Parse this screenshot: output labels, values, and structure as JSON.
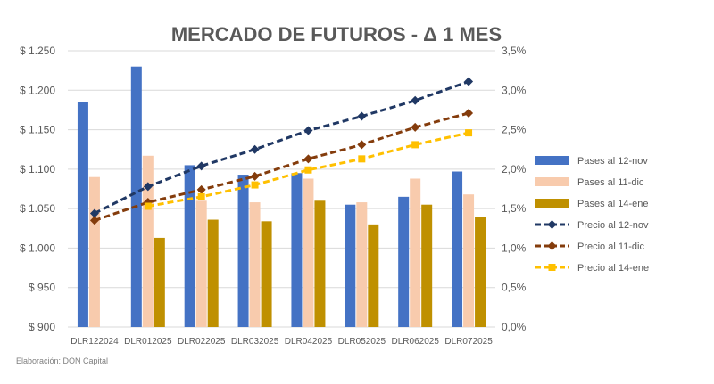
{
  "chart_data": {
    "type": "bar",
    "title": "MERCADO DE FUTUROS - Δ 1 MES",
    "categories": [
      "DLR122024",
      "DLR012025",
      "DLR022025",
      "DLR032025",
      "DLR042025",
      "DLR052025",
      "DLR062025",
      "DLR072025"
    ],
    "y_left": {
      "ticks": [
        "$ 900",
        "$ 950",
        "$ 1.000",
        "$ 1.050",
        "$ 1.100",
        "$ 1.150",
        "$ 1.200",
        "$ 1.250"
      ],
      "ylim": [
        900,
        1250
      ]
    },
    "y_right": {
      "ticks": [
        "0,0%",
        "0,5%",
        "1,0%",
        "1,5%",
        "2,0%",
        "2,5%",
        "3,0%",
        "3,5%"
      ],
      "ylim": [
        0,
        3.5
      ]
    },
    "bar_series": [
      {
        "name": "Pases al 12-nov",
        "color": "#4472c4",
        "axis": "right",
        "values": [
          2.85,
          3.3,
          2.05,
          1.93,
          1.95,
          1.55,
          1.65,
          1.97
        ]
      },
      {
        "name": "Pases al 11-dic",
        "color": "#f8cbad",
        "axis": "right",
        "values": [
          1.9,
          2.17,
          1.6,
          1.58,
          1.88,
          1.58,
          1.88,
          1.68
        ]
      },
      {
        "name": "Pases al 14-ene",
        "color": "#bf9000",
        "axis": "right",
        "values": [
          null,
          1.13,
          1.36,
          1.34,
          1.6,
          1.3,
          1.55,
          1.39
        ]
      }
    ],
    "line_series": [
      {
        "name": "Precio al 12-nov",
        "color": "#203864",
        "marker": "diamond",
        "axis": "left",
        "values": [
          1044,
          1078,
          1104,
          1125,
          1149,
          1167,
          1187,
          1211
        ]
      },
      {
        "name": "Precio al 11-dic",
        "color": "#843c0c",
        "marker": "diamond",
        "axis": "left",
        "values": [
          1035,
          1058,
          1074,
          1091,
          1113,
          1131,
          1153,
          1171
        ]
      },
      {
        "name": "Precio al 14-ene",
        "color": "#ffc000",
        "marker": "square",
        "axis": "left",
        "values": [
          null,
          1053,
          1065,
          1080,
          1099,
          1113,
          1131,
          1146
        ]
      }
    ],
    "legend_position": "right",
    "grid": true
  },
  "footer": {
    "source": "Elaboración: DON Capital"
  }
}
